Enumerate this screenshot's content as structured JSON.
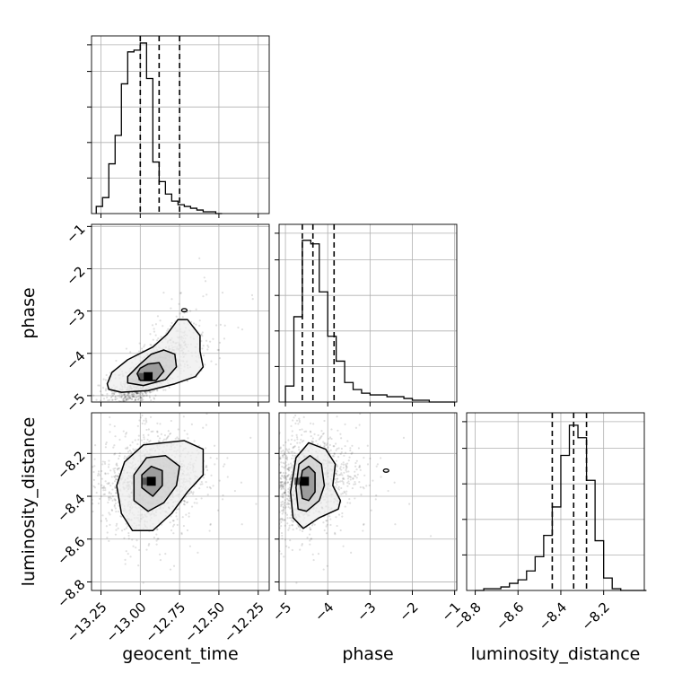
{
  "chart_data": {
    "type": "corner",
    "parameters": [
      "geocent_time",
      "phase",
      "luminosity_distance"
    ],
    "ranges": {
      "geocent_time": [
        -13.31,
        -12.18
      ],
      "phase": [
        -5.15,
        -0.95
      ],
      "luminosity_distance": [
        -8.84,
        -8.01
      ]
    },
    "ticks": {
      "geocent_time": [
        -13.25,
        -13.0,
        -12.75,
        -12.5,
        -12.25
      ],
      "geocent_time_labels": [
        "−13.25",
        "−13.00",
        "−12.75",
        "−12.50",
        "−12.25"
      ],
      "phase": [
        -5,
        -4,
        -3,
        -2,
        -1
      ],
      "phase_labels": [
        "−5",
        "−4",
        "−3",
        "−2",
        "−1"
      ],
      "luminosity_distance": [
        -8.8,
        -8.6,
        -8.4,
        -8.2
      ],
      "luminosity_distance_labels": [
        "−8.8",
        "−8.6",
        "−8.4",
        "−8.2"
      ]
    },
    "xlabels": [
      "geocent_time",
      "phase",
      "luminosity_distance"
    ],
    "ylabels": [
      "phase",
      "luminosity_distance"
    ],
    "grid": true,
    "histograms": [
      {
        "param": "geocent_time",
        "bin_edges_start": -13.28,
        "bin_width": 0.04,
        "counts": [
          0.04,
          0.09,
          0.28,
          0.44,
          0.73,
          0.91,
          0.92,
          0.96,
          0.76,
          0.29,
          0.18,
          0.11,
          0.07,
          0.05,
          0.04,
          0.03,
          0.02,
          0.01,
          0.01,
          0.0
        ],
        "quantiles": [
          -13.0,
          -12.88,
          -12.75
        ]
      },
      {
        "param": "phase",
        "bin_edges_start": -5.0,
        "bin_width": 0.2,
        "counts": [
          0.09,
          0.48,
          0.91,
          0.89,
          0.62,
          0.37,
          0.23,
          0.11,
          0.07,
          0.05,
          0.04,
          0.04,
          0.03,
          0.03,
          0.02,
          0.01,
          0.01,
          0.0,
          0.0,
          0.0
        ],
        "quantiles": [
          -4.6,
          -4.35,
          -3.85
        ]
      },
      {
        "param": "luminosity_distance",
        "bin_edges_start": -8.8,
        "bin_width": 0.04,
        "counts": [
          0.0,
          0.01,
          0.01,
          0.02,
          0.04,
          0.06,
          0.11,
          0.19,
          0.31,
          0.47,
          0.76,
          0.93,
          0.86,
          0.62,
          0.28,
          0.07,
          0.01,
          0.0,
          0.0,
          0.0
        ],
        "quantiles": [
          -8.44,
          -8.34,
          -8.28
        ]
      }
    ],
    "contours_2d": [
      {
        "x": "geocent_time",
        "y": "phase",
        "peak": [
          -12.95,
          -4.55
        ],
        "extra_island": [
          -12.72,
          -2.98
        ],
        "levels": [
          [
            [
              -13.21,
              -4.72
            ],
            [
              -13.2,
              -4.85
            ],
            [
              -13.12,
              -4.92
            ],
            [
              -12.95,
              -4.88
            ],
            [
              -12.78,
              -4.72
            ],
            [
              -12.65,
              -4.55
            ],
            [
              -12.6,
              -4.32
            ],
            [
              -12.62,
              -3.95
            ],
            [
              -12.62,
              -3.58
            ],
            [
              -12.7,
              -3.2
            ],
            [
              -12.76,
              -3.2
            ],
            [
              -12.83,
              -3.55
            ],
            [
              -12.92,
              -3.85
            ],
            [
              -13.08,
              -4.15
            ],
            [
              -13.18,
              -4.45
            ]
          ],
          [
            [
              -13.08,
              -4.55
            ],
            [
              -13.08,
              -4.7
            ],
            [
              -12.98,
              -4.76
            ],
            [
              -12.84,
              -4.62
            ],
            [
              -12.77,
              -4.32
            ],
            [
              -12.78,
              -4.02
            ],
            [
              -12.85,
              -3.92
            ],
            [
              -12.93,
              -4.02
            ],
            [
              -13.0,
              -4.25
            ]
          ],
          [
            [
              -13.02,
              -4.48
            ],
            [
              -13.0,
              -4.64
            ],
            [
              -12.9,
              -4.64
            ],
            [
              -12.85,
              -4.42
            ],
            [
              -12.88,
              -4.22
            ],
            [
              -12.95,
              -4.25
            ],
            [
              -13.0,
              -4.35
            ]
          ]
        ]
      },
      {
        "x": "geocent_time",
        "y": "luminosity_distance",
        "peak": [
          -12.93,
          -8.33
        ],
        "levels": [
          [
            [
              -13.12,
              -8.48
            ],
            [
              -13.05,
              -8.56
            ],
            [
              -12.92,
              -8.56
            ],
            [
              -12.8,
              -8.48
            ],
            [
              -12.7,
              -8.38
            ],
            [
              -12.6,
              -8.3
            ],
            [
              -12.6,
              -8.18
            ],
            [
              -12.72,
              -8.14
            ],
            [
              -12.85,
              -8.15
            ],
            [
              -12.98,
              -8.16
            ],
            [
              -13.1,
              -8.24
            ],
            [
              -13.15,
              -8.35
            ]
          ],
          [
            [
              -13.04,
              -8.42
            ],
            [
              -12.95,
              -8.47
            ],
            [
              -12.85,
              -8.43
            ],
            [
              -12.77,
              -8.35
            ],
            [
              -12.75,
              -8.26
            ],
            [
              -12.84,
              -8.21
            ],
            [
              -12.96,
              -8.22
            ],
            [
              -13.04,
              -8.3
            ]
          ],
          [
            [
              -12.99,
              -8.36
            ],
            [
              -12.92,
              -8.4
            ],
            [
              -12.86,
              -8.35
            ],
            [
              -12.86,
              -8.28
            ],
            [
              -12.93,
              -8.26
            ],
            [
              -12.99,
              -8.3
            ]
          ]
        ]
      },
      {
        "x": "phase",
        "y": "luminosity_distance",
        "peak": [
          -4.55,
          -8.33
        ],
        "extra_island": [
          -2.62,
          -8.28
        ],
        "levels": [
          [
            [
              -4.88,
              -8.38
            ],
            [
              -4.82,
              -8.5
            ],
            [
              -4.58,
              -8.55
            ],
            [
              -4.2,
              -8.5
            ],
            [
              -3.75,
              -8.46
            ],
            [
              -3.7,
              -8.42
            ],
            [
              -3.88,
              -8.35
            ],
            [
              -3.82,
              -8.25
            ],
            [
              -4.05,
              -8.18
            ],
            [
              -4.45,
              -8.15
            ],
            [
              -4.75,
              -8.22
            ]
          ],
          [
            [
              -4.75,
              -8.36
            ],
            [
              -4.7,
              -8.46
            ],
            [
              -4.5,
              -8.47
            ],
            [
              -4.2,
              -8.42
            ],
            [
              -4.08,
              -8.35
            ],
            [
              -4.15,
              -8.25
            ],
            [
              -4.42,
              -8.21
            ],
            [
              -4.68,
              -8.25
            ]
          ],
          [
            [
              -4.65,
              -8.34
            ],
            [
              -4.6,
              -8.41
            ],
            [
              -4.45,
              -8.42
            ],
            [
              -4.3,
              -8.38
            ],
            [
              -4.3,
              -8.29
            ],
            [
              -4.45,
              -8.26
            ],
            [
              -4.6,
              -8.28
            ]
          ]
        ]
      }
    ]
  }
}
